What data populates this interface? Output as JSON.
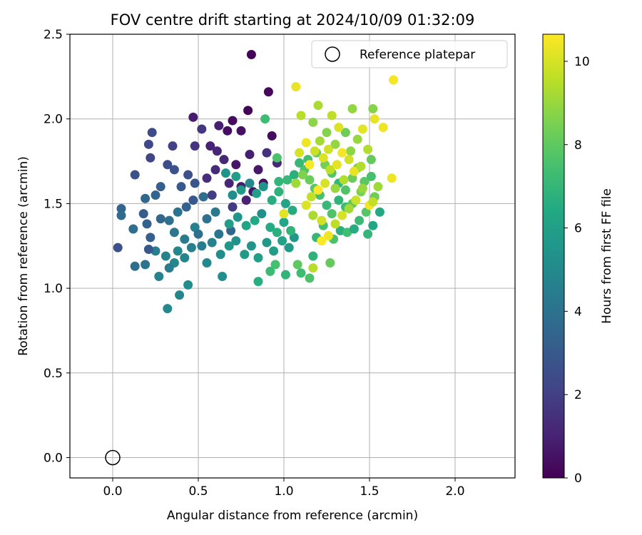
{
  "chart_data": {
    "type": "scatter",
    "title": "FOV centre drift starting at 2024/10/09 01:32:09",
    "xlabel": "Angular distance from reference (arcmin)",
    "ylabel": "Rotation from reference (arcmin)",
    "colorbar_label": "Hours from first FF file",
    "xlim": [
      -0.25,
      2.35
    ],
    "ylim": [
      -0.12,
      2.5
    ],
    "clim": [
      0,
      10.65
    ],
    "x_ticks": [
      0.0,
      0.5,
      1.0,
      1.5,
      2.0
    ],
    "x_tick_labels": [
      "0.0",
      "0.5",
      "1.0",
      "1.5",
      "2.0"
    ],
    "y_ticks": [
      0.0,
      0.5,
      1.0,
      1.5,
      2.0,
      2.5
    ],
    "y_tick_labels": [
      "0.0",
      "0.5",
      "1.0",
      "1.5",
      "2.0",
      "2.5"
    ],
    "colorbar_ticks": [
      0,
      2,
      4,
      6,
      8,
      10
    ],
    "colorbar_tick_labels": [
      "0",
      "2",
      "4",
      "6",
      "8",
      "10"
    ],
    "colormap": "viridis",
    "grid": true,
    "legend_position": "top-right",
    "legend": [
      {
        "label": "Reference platepar",
        "marker": "open-circle"
      }
    ],
    "reference_point": {
      "x": 0.0,
      "y": 0.0
    },
    "series": [
      {
        "points": [
          [
            0.81,
            2.38,
            0.1
          ],
          [
            0.91,
            2.16,
            0.2
          ],
          [
            0.79,
            2.05,
            0.1
          ],
          [
            0.7,
            1.99,
            0.3
          ],
          [
            0.67,
            1.93,
            0.4
          ],
          [
            0.75,
            1.93,
            0.5
          ],
          [
            0.47,
            2.01,
            0.8
          ],
          [
            0.57,
            1.84,
            1.0
          ],
          [
            0.61,
            1.81,
            1.1
          ],
          [
            0.65,
            1.76,
            1.2
          ],
          [
            0.72,
            1.73,
            0.6
          ],
          [
            0.8,
            1.79,
            0.9
          ],
          [
            0.85,
            1.7,
            0.7
          ],
          [
            0.93,
            1.9,
            0.3
          ],
          [
            0.6,
            1.7,
            1.3
          ],
          [
            0.55,
            1.65,
            1.4
          ],
          [
            0.68,
            1.62,
            1.1
          ],
          [
            0.75,
            1.6,
            0.8
          ],
          [
            0.82,
            1.57,
            0.6
          ],
          [
            0.88,
            1.62,
            0.5
          ],
          [
            0.48,
            1.84,
            1.6
          ],
          [
            0.52,
            1.94,
            1.7
          ],
          [
            0.62,
            1.96,
            0.9
          ],
          [
            0.9,
            1.8,
            1.5
          ],
          [
            0.96,
            1.74,
            1.2
          ],
          [
            0.58,
            1.55,
            1.9
          ],
          [
            0.7,
            1.48,
            1.8
          ],
          [
            0.78,
            1.52,
            1.0
          ],
          [
            0.23,
            1.92,
            2.4
          ],
          [
            0.21,
            1.85,
            2.3
          ],
          [
            0.22,
            1.77,
            2.2
          ],
          [
            0.35,
            1.84,
            2.1
          ],
          [
            0.13,
            1.67,
            2.6
          ],
          [
            0.32,
            1.73,
            2.5
          ],
          [
            0.36,
            1.7,
            2.7
          ],
          [
            0.44,
            1.67,
            2.6
          ],
          [
            0.48,
            1.62,
            2.8
          ],
          [
            0.4,
            1.6,
            2.9
          ],
          [
            0.28,
            1.6,
            3.2
          ],
          [
            0.25,
            1.55,
            3.4
          ],
          [
            0.19,
            1.53,
            3.6
          ],
          [
            0.05,
            1.47,
            3.4
          ],
          [
            0.05,
            1.43,
            3.7
          ],
          [
            0.18,
            1.44,
            3.1
          ],
          [
            0.2,
            1.38,
            3.3
          ],
          [
            0.12,
            1.35,
            3.8
          ],
          [
            0.22,
            1.3,
            3.2
          ],
          [
            0.28,
            1.41,
            3.5
          ],
          [
            0.33,
            1.4,
            3.9
          ],
          [
            0.38,
            1.45,
            4.1
          ],
          [
            0.43,
            1.48,
            3.3
          ],
          [
            0.47,
            1.52,
            2.9
          ],
          [
            0.53,
            1.54,
            3.8
          ],
          [
            0.36,
            1.33,
            4.2
          ],
          [
            0.42,
            1.29,
            4.4
          ],
          [
            0.48,
            1.36,
            4.6
          ],
          [
            0.55,
            1.41,
            4.0
          ],
          [
            0.6,
            1.45,
            4.3
          ],
          [
            0.25,
            1.22,
            4.5
          ],
          [
            0.31,
            1.19,
            4.7
          ],
          [
            0.36,
            1.15,
            4.9
          ],
          [
            0.42,
            1.18,
            4.8
          ],
          [
            0.46,
            1.24,
            4.6
          ],
          [
            0.52,
            1.25,
            4.4
          ],
          [
            0.58,
            1.27,
            4.7
          ],
          [
            0.62,
            1.32,
            4.1
          ],
          [
            0.69,
            1.34,
            3.5
          ],
          [
            0.13,
            1.13,
            3.8
          ],
          [
            0.19,
            1.14,
            4.0
          ],
          [
            0.21,
            1.23,
            2.9
          ],
          [
            0.03,
            1.24,
            2.6
          ],
          [
            0.27,
            1.07,
            4.7
          ],
          [
            0.39,
            0.96,
            4.8
          ],
          [
            0.32,
            0.88,
            5.0
          ],
          [
            0.44,
            1.02,
            5.1
          ],
          [
            0.33,
            1.12,
            4.5
          ],
          [
            0.38,
            1.22,
            4.9
          ],
          [
            0.55,
            1.15,
            5.0
          ],
          [
            0.5,
            1.32,
            3.9
          ],
          [
            0.64,
            1.07,
            5.3
          ],
          [
            0.63,
            1.2,
            5.2
          ],
          [
            0.68,
            1.25,
            5.6
          ],
          [
            0.72,
            1.28,
            5.4
          ],
          [
            0.77,
            1.2,
            5.8
          ],
          [
            0.81,
            1.25,
            5.5
          ],
          [
            0.85,
            1.18,
            6.0
          ],
          [
            0.9,
            1.27,
            5.7
          ],
          [
            0.94,
            1.22,
            5.9
          ],
          [
            0.99,
            1.28,
            6.1
          ],
          [
            1.03,
            1.24,
            5.8
          ],
          [
            1.06,
            1.3,
            5.6
          ],
          [
            0.68,
            1.38,
            5.9
          ],
          [
            0.73,
            1.42,
            5.5
          ],
          [
            0.78,
            1.37,
            6.2
          ],
          [
            0.83,
            1.4,
            6.4
          ],
          [
            0.87,
            1.44,
            5.3
          ],
          [
            0.92,
            1.36,
            6.5
          ],
          [
            0.96,
            1.33,
            6.7
          ],
          [
            1.0,
            1.39,
            6.3
          ],
          [
            1.04,
            1.34,
            6.9
          ],
          [
            0.7,
            1.55,
            5.2
          ],
          [
            0.75,
            1.58,
            5.8
          ],
          [
            0.8,
            1.62,
            5.0
          ],
          [
            0.84,
            1.56,
            6.0
          ],
          [
            0.88,
            1.6,
            5.4
          ],
          [
            0.93,
            1.52,
            6.6
          ],
          [
            0.97,
            1.57,
            6.8
          ],
          [
            1.01,
            1.5,
            6.2
          ],
          [
            1.05,
            1.46,
            6.5
          ],
          [
            0.66,
            1.68,
            5.4
          ],
          [
            0.72,
            1.66,
            5.9
          ],
          [
            0.89,
            2.0,
            7.3
          ],
          [
            0.96,
            1.77,
            7.6
          ],
          [
            1.02,
            1.64,
            7.1
          ],
          [
            1.06,
            1.67,
            6.7
          ],
          [
            0.97,
            1.63,
            7.0
          ],
          [
            0.85,
            1.04,
            6.6
          ],
          [
            0.92,
            1.1,
            7.2
          ],
          [
            0.95,
            1.14,
            7.5
          ],
          [
            1.01,
            1.08,
            6.9
          ],
          [
            1.08,
            1.14,
            8.0
          ],
          [
            1.1,
            1.09,
            7.3
          ],
          [
            1.15,
            1.06,
            7.6
          ],
          [
            1.17,
            1.19,
            6.8
          ],
          [
            1.19,
            1.3,
            7.0
          ],
          [
            1.23,
            1.37,
            7.4
          ],
          [
            1.27,
            1.15,
            8.1
          ],
          [
            1.29,
            1.29,
            7.6
          ],
          [
            1.33,
            1.34,
            6.7
          ],
          [
            1.37,
            1.33,
            7.4
          ],
          [
            1.41,
            1.35,
            6.5
          ],
          [
            1.44,
            1.4,
            7.2
          ],
          [
            1.49,
            1.32,
            7.0
          ],
          [
            1.52,
            1.37,
            6.3
          ],
          [
            1.56,
            1.45,
            6.4
          ],
          [
            1.48,
            1.45,
            7.8
          ],
          [
            1.53,
            1.54,
            8.3
          ],
          [
            1.47,
            1.63,
            7.9
          ],
          [
            1.51,
            1.66,
            7.5
          ],
          [
            1.45,
            1.57,
            8.5
          ],
          [
            1.4,
            1.5,
            8.0
          ],
          [
            1.36,
            1.48,
            7.3
          ],
          [
            1.32,
            1.52,
            6.9
          ],
          [
            1.28,
            1.44,
            7.7
          ],
          [
            1.25,
            1.49,
            7.1
          ],
          [
            1.21,
            1.55,
            7.5
          ],
          [
            1.18,
            1.59,
            7.9
          ],
          [
            1.15,
            1.64,
            8.2
          ],
          [
            1.12,
            1.7,
            7.7
          ],
          [
            1.09,
            1.74,
            7.1
          ],
          [
            1.14,
            1.76,
            7.4
          ],
          [
            1.19,
            1.8,
            8.1
          ],
          [
            1.24,
            1.73,
            8.4
          ],
          [
            1.28,
            1.68,
            7.8
          ],
          [
            1.32,
            1.62,
            7.0
          ],
          [
            1.36,
            1.58,
            7.7
          ],
          [
            1.4,
            1.65,
            8.2
          ],
          [
            1.43,
            1.71,
            8.6
          ],
          [
            1.39,
            1.81,
            8.8
          ],
          [
            1.43,
            1.88,
            9.0
          ],
          [
            1.36,
            1.92,
            8.3
          ],
          [
            1.3,
            1.85,
            8.9
          ],
          [
            1.25,
            1.92,
            8.7
          ],
          [
            1.21,
            1.87,
            9.2
          ],
          [
            1.17,
            1.98,
            8.8
          ],
          [
            1.1,
            2.02,
            9.5
          ],
          [
            1.2,
            2.08,
            9.3
          ],
          [
            1.28,
            2.02,
            9.6
          ],
          [
            1.4,
            2.06,
            8.9
          ],
          [
            1.52,
            2.06,
            8.7
          ],
          [
            1.53,
            2.0,
            10.3
          ],
          [
            1.49,
            1.82,
            9.4
          ],
          [
            1.51,
            1.76,
            8.1
          ],
          [
            1.07,
            2.19,
            10.3
          ],
          [
            1.64,
            2.23,
            10.5
          ],
          [
            1.58,
            1.95,
            10.4
          ],
          [
            1.46,
            1.94,
            10.2
          ],
          [
            1.09,
            1.8,
            10.0
          ],
          [
            1.13,
            1.86,
            10.4
          ],
          [
            1.15,
            1.73,
            10.6
          ],
          [
            1.18,
            1.81,
            9.8
          ],
          [
            1.23,
            1.77,
            10.1
          ],
          [
            1.27,
            1.7,
            9.6
          ],
          [
            1.31,
            1.73,
            10.2
          ],
          [
            1.34,
            1.8,
            10.5
          ],
          [
            1.38,
            1.76,
            9.9
          ],
          [
            1.41,
            1.69,
            10.3
          ],
          [
            1.45,
            1.72,
            9.4
          ],
          [
            1.24,
            1.62,
            10.0
          ],
          [
            1.2,
            1.58,
            10.6
          ],
          [
            1.16,
            1.54,
            9.7
          ],
          [
            1.13,
            1.49,
            10.1
          ],
          [
            1.17,
            1.43,
            9.3
          ],
          [
            1.22,
            1.4,
            9.9
          ],
          [
            1.26,
            1.31,
            10.4
          ],
          [
            1.3,
            1.38,
            9.6
          ],
          [
            1.34,
            1.43,
            10.0
          ],
          [
            1.38,
            1.47,
            9.2
          ],
          [
            1.42,
            1.52,
            9.8
          ],
          [
            1.46,
            1.59,
            9.0
          ],
          [
            1.5,
            1.49,
            10.5
          ],
          [
            1.55,
            1.6,
            9.1
          ],
          [
            1.63,
            1.65,
            10.4
          ],
          [
            1.52,
            1.51,
            9.7
          ],
          [
            1.0,
            1.44,
            10.2
          ],
          [
            1.07,
            1.62,
            9.1
          ],
          [
            1.11,
            1.67,
            8.6
          ],
          [
            1.17,
            1.12,
            9.5
          ],
          [
            1.22,
            1.28,
            10.6
          ],
          [
            1.3,
            1.59,
            9.0
          ],
          [
            1.35,
            1.64,
            9.4
          ],
          [
            1.26,
            1.82,
            9.9
          ],
          [
            1.32,
            1.95,
            10.1
          ]
        ]
      }
    ]
  }
}
